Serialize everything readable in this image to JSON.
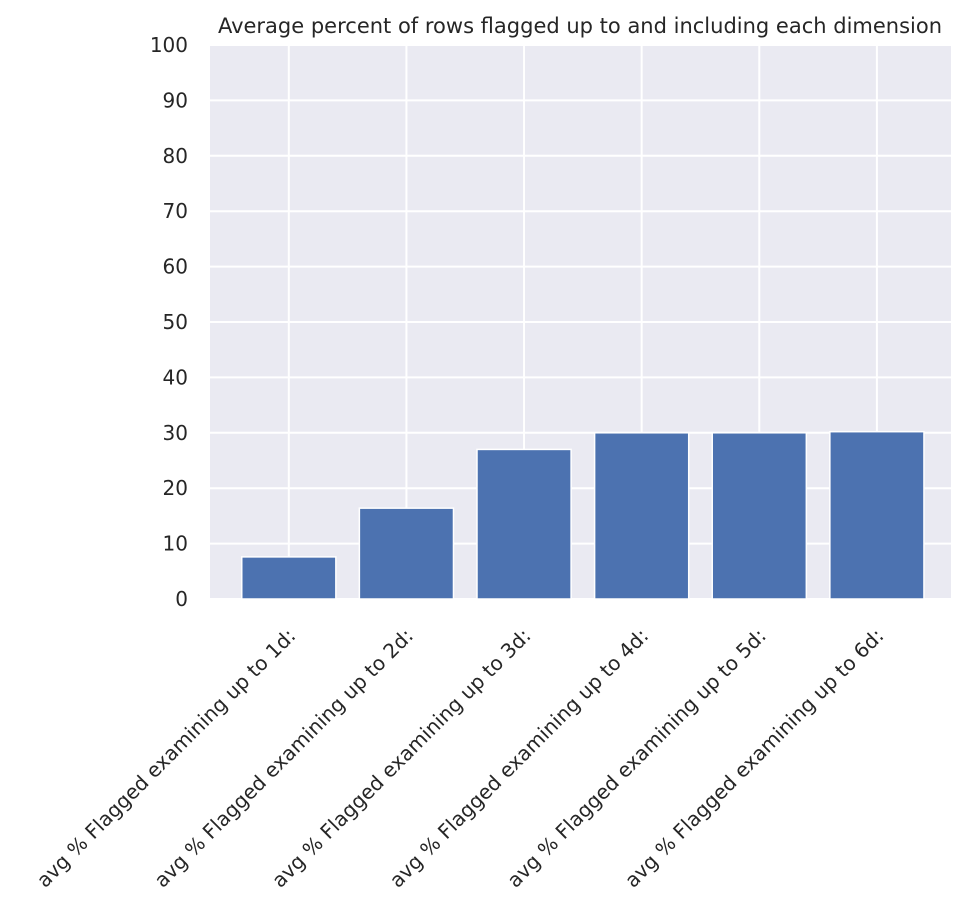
{
  "chart_data": {
    "type": "bar",
    "title": "Average percent of rows flagged up to and including each dimension",
    "xlabel": "",
    "ylabel": "",
    "categories": [
      "avg % Flagged examining up to 1d:",
      "avg % Flagged examining up to 2d:",
      "avg % Flagged examining up to 3d:",
      "avg % Flagged examining up to 4d:",
      "avg % Flagged examining up to 5d:",
      "avg % Flagged examining up to 6d:"
    ],
    "values": [
      7.6,
      16.4,
      27.0,
      30.0,
      30.0,
      30.2
    ],
    "ylim": [
      0,
      100
    ],
    "yticks": [
      "0",
      "10",
      "20",
      "30",
      "40",
      "50",
      "60",
      "70",
      "80",
      "90",
      "100"
    ],
    "grid": true,
    "colors": {
      "bar": "#4c72b0",
      "plot_background": "#eaeaf2",
      "grid": "#ffffff"
    }
  }
}
